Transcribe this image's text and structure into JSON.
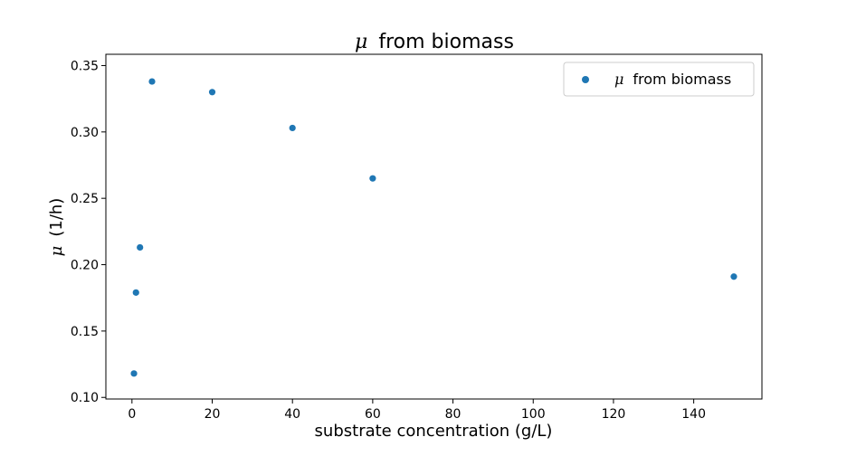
{
  "chart_data": {
    "type": "scatter",
    "title_symbol": "μ",
    "title_text": "from biomass",
    "xlabel": "substrate concentration (g/L)",
    "ylabel_symbol": "μ",
    "ylabel_text": "(1/h)",
    "xlim": [
      -6.5,
      157
    ],
    "ylim": [
      0.0988,
      0.3585
    ],
    "xticks": [
      0,
      20,
      40,
      60,
      80,
      100,
      120,
      140
    ],
    "yticks": [
      0.1,
      0.15,
      0.2,
      0.25,
      0.3,
      0.35
    ],
    "xtick_labels": [
      "0",
      "20",
      "40",
      "60",
      "80",
      "100",
      "120",
      "140"
    ],
    "ytick_labels": [
      "0.10",
      "0.15",
      "0.20",
      "0.25",
      "0.30",
      "0.35"
    ],
    "grid": false,
    "legend_position": "top-right",
    "series": [
      {
        "name_symbol": "μ",
        "name_text": "from biomass",
        "color": "#1f77b4",
        "points": [
          {
            "x": 0.5,
            "y": 0.118
          },
          {
            "x": 1,
            "y": 0.179
          },
          {
            "x": 2,
            "y": 0.213
          },
          {
            "x": 5,
            "y": 0.338
          },
          {
            "x": 20,
            "y": 0.33
          },
          {
            "x": 40,
            "y": 0.303
          },
          {
            "x": 60,
            "y": 0.265
          },
          {
            "x": 150,
            "y": 0.191
          }
        ]
      }
    ]
  }
}
